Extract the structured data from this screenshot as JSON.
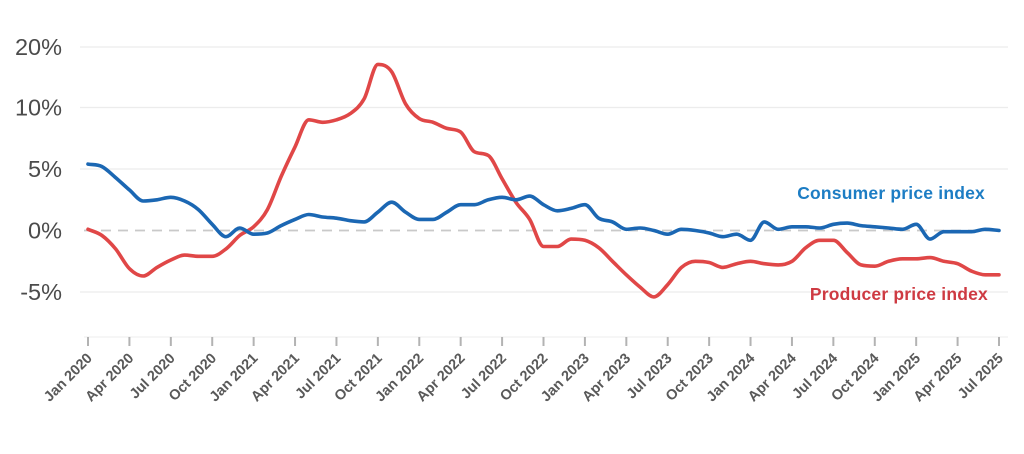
{
  "chart_data": {
    "type": "line",
    "title": "",
    "frequency": "monthly",
    "x_range": [
      "Jan 2020",
      "Jul 2025"
    ],
    "x_tick_labels": [
      "Jan 2020",
      "Apr 2020",
      "Jul 2020",
      "Oct 2020",
      "Jan 2021",
      "Apr 2021",
      "Jul 2021",
      "Oct 2021",
      "Jan 2022",
      "Apr 2022",
      "Jul 2022",
      "Oct 2022",
      "Jan 2023",
      "Apr 2023",
      "Jul 2023",
      "Oct 2023",
      "Jan 2024",
      "Apr 2024",
      "Jul 2024",
      "Oct 2024",
      "Jan 2025",
      "Apr 2025",
      "Jul 2025"
    ],
    "y_axis": {
      "tick_labels": [
        "20%",
        "10%",
        "5%",
        "0%",
        "-5%"
      ],
      "tick_values": [
        20,
        10,
        5,
        0,
        -5
      ],
      "zero_line_style": "dashed",
      "grid": true
    },
    "legend_position": "end-of-line labels",
    "series": [
      {
        "name": "Consumer price index",
        "label_color": "#1d7dc4",
        "line_color": "#1b67b3",
        "values": [
          5.4,
          5.2,
          4.3,
          3.3,
          2.4,
          2.5,
          2.7,
          2.4,
          1.7,
          0.5,
          -0.5,
          0.2,
          -0.3,
          -0.2,
          0.4,
          0.9,
          1.3,
          1.1,
          1.0,
          0.8,
          0.7,
          1.5,
          2.3,
          1.5,
          0.9,
          0.9,
          1.5,
          2.1,
          2.1,
          2.5,
          2.7,
          2.5,
          2.8,
          2.1,
          1.6,
          1.8,
          2.1,
          1.0,
          0.7,
          0.1,
          0.2,
          0.0,
          -0.3,
          0.1,
          0.0,
          -0.2,
          -0.5,
          -0.3,
          -0.8,
          0.7,
          0.1,
          0.3,
          0.3,
          0.2,
          0.5,
          0.6,
          0.4,
          0.3,
          0.2,
          0.1,
          0.5,
          -0.7,
          -0.1,
          -0.1,
          -0.1,
          0.1,
          0.0
        ]
      },
      {
        "name": "Producer price index",
        "label_color": "#ce3a42",
        "line_color": "#e04747",
        "values": [
          0.1,
          -0.4,
          -1.5,
          -3.1,
          -3.7,
          -3.0,
          -2.4,
          -2.0,
          -2.1,
          -2.1,
          -1.5,
          -0.4,
          0.3,
          1.7,
          4.4,
          6.8,
          9.0,
          8.8,
          9.0,
          9.5,
          10.7,
          13.5,
          12.9,
          10.3,
          9.1,
          8.8,
          8.3,
          8.0,
          6.4,
          6.1,
          4.2,
          2.3,
          0.9,
          -1.3,
          -1.3,
          -0.7,
          -0.8,
          -1.4,
          -2.5,
          -3.6,
          -4.6,
          -5.4,
          -4.4,
          -3.0,
          -2.5,
          -2.6,
          -3.0,
          -2.7,
          -2.5,
          -2.7,
          -2.8,
          -2.5,
          -1.4,
          -0.8,
          -0.8,
          -1.8,
          -2.8,
          -2.9,
          -2.5,
          -2.3,
          -2.3,
          -2.2,
          -2.5,
          -2.7,
          -3.3,
          -3.6,
          -3.6
        ]
      }
    ]
  },
  "styles": {
    "background": "#ffffff",
    "grid_color": "#ececec",
    "zero_dash_color": "#c9c9c9",
    "tick_color": "#b3b3b3",
    "axis_line_color": "#ededed",
    "y_label_color": "#4b4b4b",
    "x_label_color": "#595959"
  }
}
